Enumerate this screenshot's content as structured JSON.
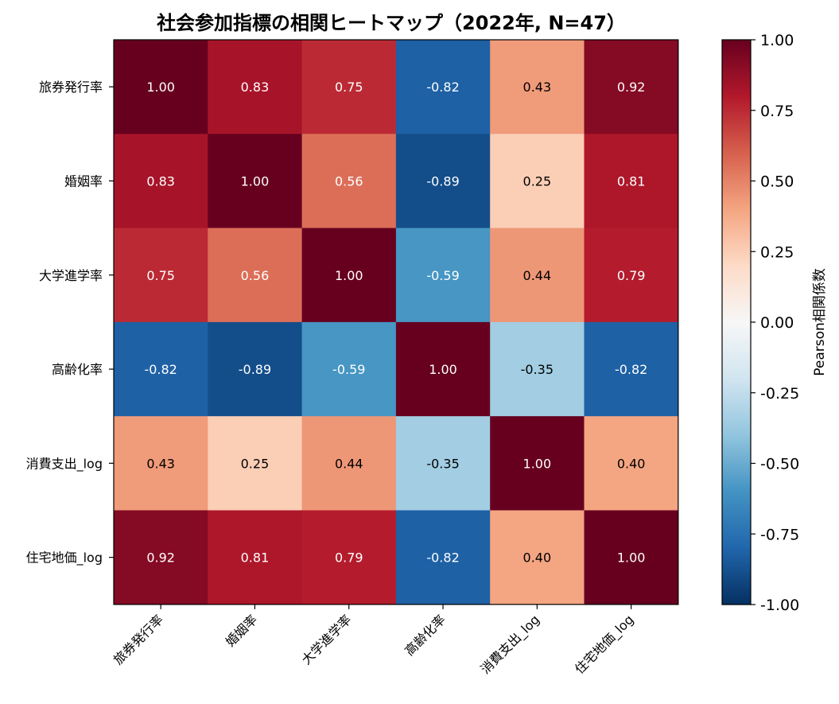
{
  "chart_data": {
    "type": "heatmap",
    "title": "社会参加指標の相関ヒートマップ（2022年, N=47）",
    "rows": [
      "旅券発行率",
      "婚姻率",
      "大学進学率",
      "高齢化率",
      "消費支出_log",
      "住宅地価_log"
    ],
    "columns": [
      "旅券発行率",
      "婚姻率",
      "大学進学率",
      "高齢化率",
      "消費支出_log",
      "住宅地価_log"
    ],
    "values": [
      [
        1.0,
        0.83,
        0.75,
        -0.82,
        0.43,
        0.92
      ],
      [
        0.83,
        1.0,
        0.56,
        -0.89,
        0.25,
        0.81
      ],
      [
        0.75,
        0.56,
        1.0,
        -0.59,
        0.44,
        0.79
      ],
      [
        -0.82,
        -0.89,
        -0.59,
        1.0,
        -0.35,
        -0.82
      ],
      [
        0.43,
        0.25,
        0.44,
        -0.35,
        1.0,
        0.4
      ],
      [
        0.92,
        0.81,
        0.79,
        -0.82,
        0.4,
        1.0
      ]
    ],
    "value_labels": [
      [
        "1.00",
        "0.83",
        "0.75",
        "-0.82",
        "0.43",
        "0.92"
      ],
      [
        "0.83",
        "1.00",
        "0.56",
        "-0.89",
        "0.25",
        "0.81"
      ],
      [
        "0.75",
        "0.56",
        "1.00",
        "-0.59",
        "0.44",
        "0.79"
      ],
      [
        "-0.82",
        "-0.89",
        "-0.59",
        "1.00",
        "-0.35",
        "-0.82"
      ],
      [
        "0.43",
        "0.25",
        "0.44",
        "-0.35",
        "1.00",
        "0.40"
      ],
      [
        "0.92",
        "0.81",
        "0.79",
        "-0.82",
        "0.40",
        "1.00"
      ]
    ],
    "colorbar": {
      "label": "Pearson相関係数",
      "range": [
        -1.0,
        1.0
      ],
      "ticks": [
        1.0,
        0.75,
        0.5,
        0.25,
        0.0,
        -0.25,
        -0.5,
        -0.75,
        -1.0
      ],
      "tick_labels": [
        "1.00",
        "0.75",
        "0.50",
        "0.25",
        "0.00",
        "-0.25",
        "-0.50",
        "-0.75",
        "-1.00"
      ],
      "colormap": "RdBu_r"
    }
  }
}
